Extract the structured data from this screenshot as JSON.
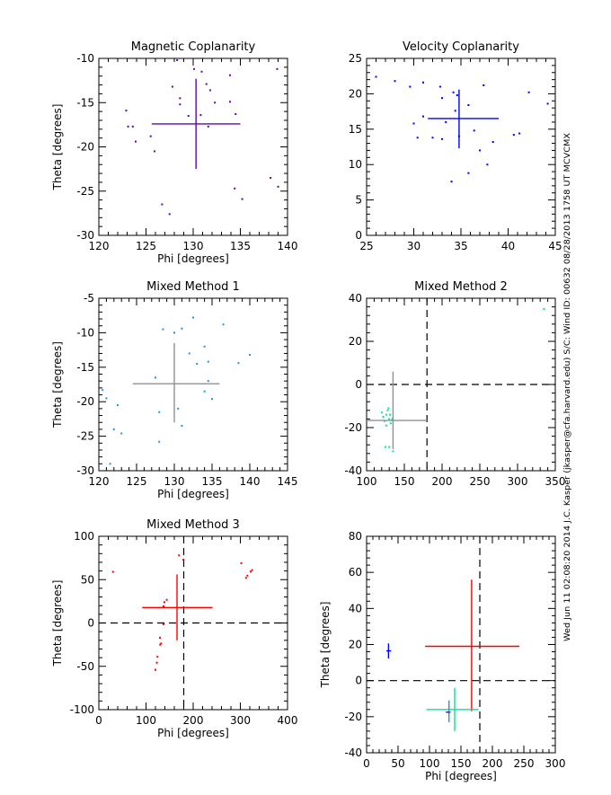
{
  "side_text": "Wed Jun 11 02:08:20 2014   J.C. Kasper (jkasper@cfa.harvard.edu)   S/C: Wind ID: 00632 08/28/2013   1758 UT MCVCMX",
  "colors": {
    "magnetic": "#5a0aa0",
    "velocity": "#0000ff",
    "mixed1": "#1e96e6",
    "mixed2": "#00e69a",
    "mixed3": "#ff0000",
    "gray": "#909090"
  },
  "chart_data": [
    {
      "type": "scatter",
      "title": "Magnetic Coplanarity",
      "xlabel": "Phi [degrees]",
      "ylabel": "Theta [degrees]",
      "xlim": [
        120,
        140
      ],
      "ylim": [
        -30,
        -10
      ],
      "xticks": [
        120,
        125,
        130,
        135,
        140
      ],
      "yticks": [
        -30,
        -25,
        -20,
        -15,
        -10
      ],
      "point_color": "magnetic",
      "cross_color": "magnetic",
      "points": [
        [
          128.3,
          -10.2
        ],
        [
          130.1,
          -11.2
        ],
        [
          130.9,
          -11.5
        ],
        [
          133.9,
          -11.9
        ],
        [
          138.9,
          -11.2
        ],
        [
          131.4,
          -12.9
        ],
        [
          127.8,
          -13.2
        ],
        [
          131.8,
          -13.6
        ],
        [
          128.6,
          -14.5
        ],
        [
          128.6,
          -15.2
        ],
        [
          132.3,
          -15.0
        ],
        [
          133.9,
          -14.9
        ],
        [
          122.9,
          -15.9
        ],
        [
          134.5,
          -16.3
        ],
        [
          129.5,
          -16.5
        ],
        [
          130.8,
          -16.4
        ],
        [
          123.1,
          -17.7
        ],
        [
          123.6,
          -17.7
        ],
        [
          131.6,
          -17.7
        ],
        [
          123.9,
          -19.4
        ],
        [
          125.5,
          -18.8
        ],
        [
          125.9,
          -20.5
        ],
        [
          138.2,
          -23.5
        ],
        [
          139.0,
          -24.5
        ],
        [
          134.4,
          -24.7
        ],
        [
          135.2,
          -25.9
        ],
        [
          126.7,
          -26.5
        ],
        [
          127.5,
          -27.6
        ]
      ],
      "crosses": [
        {
          "x": 130.3,
          "y": -17.4,
          "xmin": 125.6,
          "xmax": 135.0,
          "ymin": -22.5,
          "ymax": -12.3,
          "color": "magnetic"
        }
      ],
      "dashed": null
    },
    {
      "type": "scatter",
      "title": "Velocity Coplanarity",
      "xlabel": "",
      "ylabel": "",
      "xlim": [
        25,
        45
      ],
      "ylim": [
        0,
        25
      ],
      "xticks": [
        25,
        30,
        35,
        40,
        45
      ],
      "yticks": [
        0,
        5,
        10,
        15,
        20,
        25
      ],
      "point_color": "velocity",
      "points": [
        [
          26,
          22.4
        ],
        [
          28,
          21.8
        ],
        [
          29.6,
          21
        ],
        [
          31,
          21.6
        ],
        [
          32.8,
          21
        ],
        [
          33,
          19.4
        ],
        [
          34.2,
          20.2
        ],
        [
          34.6,
          19.8
        ],
        [
          37.4,
          21.2
        ],
        [
          42.2,
          20.2
        ],
        [
          44.2,
          18.6
        ],
        [
          35.8,
          18.4
        ],
        [
          31,
          16.8
        ],
        [
          30,
          15.8
        ],
        [
          33.4,
          16
        ],
        [
          34.4,
          17.6
        ],
        [
          36.4,
          14.8
        ],
        [
          34.8,
          14
        ],
        [
          30.4,
          13.8
        ],
        [
          32,
          13.8
        ],
        [
          33,
          13.6
        ],
        [
          38.4,
          13.2
        ],
        [
          40.6,
          14.2
        ],
        [
          41.2,
          14.4
        ],
        [
          37,
          12
        ],
        [
          35.8,
          8.8
        ],
        [
          37.8,
          10
        ],
        [
          34,
          7.6
        ]
      ],
      "crosses": [
        {
          "x": 34.8,
          "y": 16.5,
          "xmin": 31.5,
          "xmax": 39.0,
          "ymin": 12.3,
          "ymax": 20.6,
          "color": "velocity"
        }
      ],
      "dashed": null
    },
    {
      "type": "scatter",
      "title": "Mixed Method 1",
      "xlabel": "Phi [degrees]",
      "ylabel": "Theta [degrees]",
      "xlim": [
        120,
        145
      ],
      "ylim": [
        -30,
        -5
      ],
      "xticks": [
        120,
        125,
        130,
        135,
        140,
        145
      ],
      "yticks": [
        -30,
        -25,
        -20,
        -15,
        -10,
        -5
      ],
      "point_color": "mixed1",
      "points": [
        [
          121,
          -19.5
        ],
        [
          122,
          -24
        ],
        [
          121.5,
          -29
        ],
        [
          123,
          -24.6
        ],
        [
          122.5,
          -20.5
        ],
        [
          120.5,
          -18.3
        ],
        [
          127.5,
          -16.5
        ],
        [
          128,
          -21.5
        ],
        [
          128,
          -25.8
        ],
        [
          128.5,
          -9.5
        ],
        [
          130,
          -10
        ],
        [
          131,
          -9.4
        ],
        [
          130.5,
          -21
        ],
        [
          131,
          -23.5
        ],
        [
          132,
          -13
        ],
        [
          132.5,
          -7.8
        ],
        [
          133,
          -14.5
        ],
        [
          134,
          -12
        ],
        [
          134.5,
          -17
        ],
        [
          134,
          -18.5
        ],
        [
          134.5,
          -14.2
        ],
        [
          135,
          -19.6
        ],
        [
          136.5,
          -8.8
        ],
        [
          138.5,
          -14.4
        ],
        [
          140,
          -13.2
        ]
      ],
      "crosses": [
        {
          "x": 130,
          "y": -17.4,
          "xmin": 124.5,
          "xmax": 136,
          "ymin": -23,
          "ymax": -11.5,
          "color": "gray"
        }
      ],
      "dashed": null
    },
    {
      "type": "scatter",
      "title": "Mixed Method 2",
      "xlabel": "",
      "ylabel": "",
      "xlim": [
        100,
        350
      ],
      "ylim": [
        -40,
        40
      ],
      "xticks": [
        100,
        150,
        200,
        250,
        300,
        350
      ],
      "yticks": [
        -40,
        -20,
        0,
        20,
        40
      ],
      "point_color": "mixed2",
      "points": [
        [
          120,
          -13
        ],
        [
          122,
          -15
        ],
        [
          124,
          -17
        ],
        [
          126,
          -14
        ],
        [
          128,
          -12
        ],
        [
          130,
          -16
        ],
        [
          132,
          -18
        ],
        [
          126,
          -19
        ],
        [
          129,
          -11
        ],
        [
          131,
          -14
        ],
        [
          134,
          -16
        ],
        [
          125,
          -29
        ],
        [
          130,
          -29
        ],
        [
          135,
          -31
        ],
        [
          335,
          35
        ]
      ],
      "crosses": [
        {
          "x": 135,
          "y": -16.7,
          "xmin": 100,
          "xmax": 180,
          "ymin": -30,
          "ymax": 6,
          "color": "gray"
        }
      ],
      "dashed": {
        "x": 180,
        "y": 0
      }
    },
    {
      "type": "scatter",
      "title": "Mixed Method 3",
      "xlabel": "Phi [degrees]",
      "ylabel": "Theta [degrees]",
      "xlim": [
        0,
        400
      ],
      "ylim": [
        -100,
        100
      ],
      "xticks": [
        0,
        100,
        200,
        300,
        400
      ],
      "yticks": [
        -100,
        -50,
        0,
        50,
        100
      ],
      "point_color": "mixed3",
      "points": [
        [
          30,
          59
        ],
        [
          170,
          78
        ],
        [
          179,
          73
        ],
        [
          302,
          69
        ],
        [
          315,
          54.6
        ],
        [
          312,
          52
        ],
        [
          322,
          59.3
        ],
        [
          325,
          61
        ],
        [
          144,
          26.7
        ],
        [
          139,
          24
        ],
        [
          137,
          19.2
        ],
        [
          137.7,
          18.1
        ],
        [
          137,
          -1.5
        ],
        [
          129.5,
          -17
        ],
        [
          132,
          -23.6
        ],
        [
          130,
          -25
        ],
        [
          124.4,
          -39
        ],
        [
          123,
          -45.8
        ],
        [
          120,
          -54
        ]
      ],
      "crosses": [
        {
          "x": 165.7,
          "y": 17.8,
          "xmin": 92,
          "xmax": 241,
          "ymin": -20,
          "ymax": 56,
          "color": "mixed3"
        }
      ],
      "dashed": {
        "x": 180,
        "y": 0
      }
    },
    {
      "type": "scatter",
      "title": "",
      "xlabel": "Phi [degrees]",
      "ylabel": "Theta [degrees]",
      "xlim": [
        0,
        300
      ],
      "ylim": [
        -40,
        80
      ],
      "xticks": [
        0,
        50,
        100,
        150,
        200,
        250,
        300
      ],
      "yticks": [
        -40,
        -20,
        0,
        20,
        40,
        60,
        80
      ],
      "point_color": "mixed3",
      "points": [],
      "crosses": [
        {
          "x": 34.8,
          "y": 16.5,
          "xmin": 31.5,
          "xmax": 39.0,
          "ymin": 12.3,
          "ymax": 20.6,
          "color": "velocity"
        },
        {
          "x": 167,
          "y": 19,
          "xmin": 93,
          "xmax": 243,
          "ymin": -17,
          "ymax": 56,
          "color": "mixed3"
        },
        {
          "x": 140,
          "y": -16,
          "xmin": 95,
          "xmax": 178,
          "ymin": -28,
          "ymax": -4,
          "color": "mixed2"
        },
        {
          "x": 131,
          "y": -17.5,
          "xmin": 128,
          "xmax": 134,
          "ymin": -23,
          "ymax": -11,
          "color": "mixed1"
        },
        {
          "x": 129,
          "y": -17.5,
          "xmin": 126,
          "xmax": 132,
          "ymin": -17.5,
          "ymax": -17.5,
          "color": "magnetic"
        }
      ],
      "dashed": {
        "x": 180,
        "y": 0
      }
    }
  ]
}
